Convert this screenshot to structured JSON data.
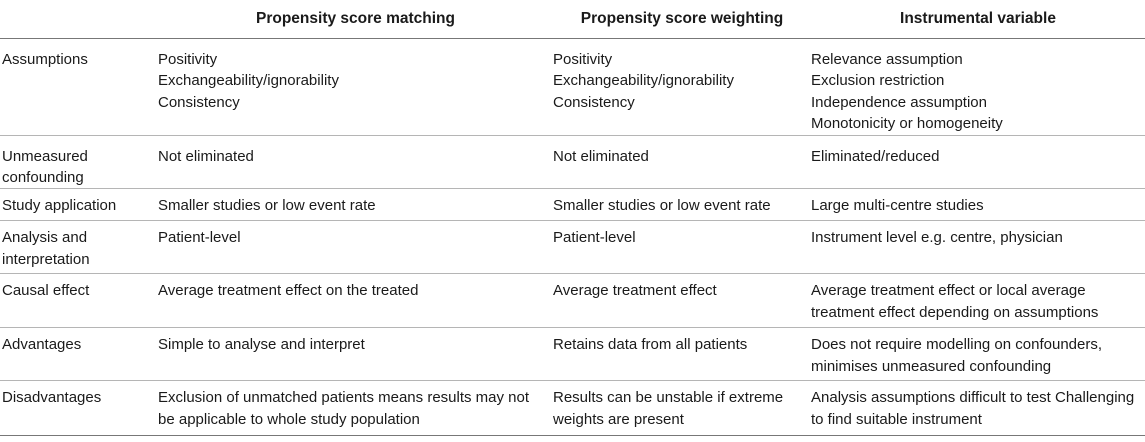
{
  "table": {
    "headers": [
      "",
      "Propensity score matching",
      "Propensity score weighting",
      "Instrumental variable"
    ],
    "rows": [
      {
        "label": [
          "Assumptions"
        ],
        "cells": [
          [
            "Positivity",
            "Exchangeability/ignorability",
            "Consistency"
          ],
          [
            "Positivity",
            "Exchangeability/ignorability",
            "Consistency"
          ],
          [
            "Relevance assumption",
            "Exclusion restriction",
            "Independence assumption",
            "Monotonicity or homogeneity"
          ]
        ]
      },
      {
        "label": [
          "Unmeasured",
          "confounding"
        ],
        "cells": [
          [
            "Not eliminated"
          ],
          [
            "Not eliminated"
          ],
          [
            "Eliminated/reduced"
          ]
        ]
      },
      {
        "label": [
          "Study application"
        ],
        "cells": [
          [
            "Smaller studies or low event rate"
          ],
          [
            "Smaller studies or low event rate"
          ],
          [
            "Large multi-centre studies"
          ]
        ]
      },
      {
        "label": [
          "Analysis and",
          "interpretation"
        ],
        "cells": [
          [
            "Patient-level"
          ],
          [
            "Patient-level"
          ],
          [
            "Instrument level e.g. centre, physician"
          ]
        ]
      },
      {
        "label": [
          "Causal effect"
        ],
        "cells": [
          [
            "Average treatment effect on the treated"
          ],
          [
            "Average treatment effect"
          ],
          [
            "Average treatment effect or local average",
            "treatment effect depending on assumptions"
          ]
        ]
      },
      {
        "label": [
          "Advantages"
        ],
        "cells": [
          [
            "Simple to analyse and interpret"
          ],
          [
            "Retains data from all patients"
          ],
          [
            "Does not require modelling on confounders,",
            "minimises unmeasured confounding"
          ]
        ]
      },
      {
        "label": [
          "Disadvantages"
        ],
        "cells": [
          [
            "Exclusion of unmatched patients means results may not",
            "be applicable to whole study population"
          ],
          [
            "Results can be unstable if extreme",
            "weights are present"
          ],
          [
            "Analysis assumptions difficult to test Challenging",
            "to find suitable instrument"
          ]
        ]
      }
    ]
  }
}
